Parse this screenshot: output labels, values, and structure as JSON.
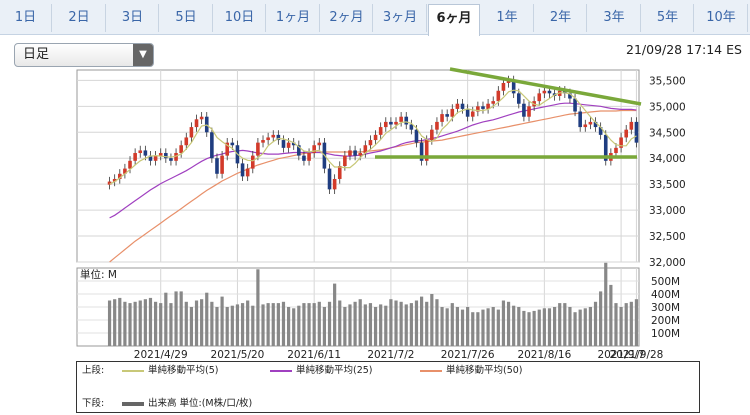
{
  "tabs": [
    "1日",
    "2日",
    "3日",
    "5日",
    "10日",
    "1ヶ月",
    "2ヶ月",
    "3ヶ月",
    "6ヶ月",
    "1年",
    "2年",
    "3年",
    "5年",
    "10年"
  ],
  "active_tab": "6ヶ月",
  "period_select": {
    "value": "日足"
  },
  "datetime": "21/09/28 17:14 ES",
  "colors": {
    "up": "#d23a2a",
    "down": "#1f3d80",
    "sma5": "#c8c878",
    "sma25": "#a040c0",
    "sma50": "#e8906a",
    "trend": "#7aa83a",
    "volume": "#888888"
  },
  "chart_data": [
    {
      "type": "candlestick",
      "x_labels": [
        "2021/4/29",
        "2021/5/20",
        "2021/6/11",
        "2021/7/2",
        "2021/7/26",
        "2021/8/16",
        "2021/9/7",
        "2021/9/28"
      ],
      "y_ticks": [
        "35,500",
        "35,000",
        "34,500",
        "34,000",
        "33,500",
        "33,000",
        "32,500",
        "32,000"
      ],
      "ylim": [
        32000,
        35700
      ],
      "close": [
        33550,
        33600,
        33700,
        33800,
        33950,
        34100,
        34150,
        34050,
        33950,
        34050,
        34100,
        34000,
        33950,
        34100,
        34250,
        34400,
        34600,
        34750,
        34800,
        34500,
        34000,
        33700,
        34050,
        34300,
        34250,
        33900,
        33650,
        33800,
        34050,
        34300,
        34350,
        34400,
        34450,
        34350,
        34200,
        34300,
        34250,
        34050,
        33950,
        34100,
        34250,
        34300,
        33800,
        33400,
        33600,
        33850,
        34050,
        34150,
        34050,
        34100,
        34250,
        34350,
        34450,
        34600,
        34700,
        34650,
        34700,
        34800,
        34650,
        34550,
        34300,
        33950,
        34350,
        34550,
        34700,
        34850,
        34800,
        34950,
        35050,
        34950,
        34800,
        34900,
        35000,
        34950,
        35050,
        35100,
        35300,
        35450,
        35500,
        35250,
        35050,
        34800,
        35000,
        35100,
        35250,
        35300,
        35250,
        35200,
        35300,
        35250,
        35150,
        34900,
        34600,
        34650,
        34700,
        34600,
        34450,
        33950,
        34100,
        34200,
        34400,
        34550,
        34700,
        34300
      ],
      "sma5": [
        33500,
        33550,
        33620,
        33700,
        33780,
        33870,
        33950,
        34000,
        34040,
        34050,
        34040,
        34030,
        34020,
        34040,
        34080,
        34180,
        34300,
        34470,
        34620,
        34640,
        34560,
        34400,
        34320,
        34250,
        34190,
        34080,
        34000,
        33960,
        33950,
        34010,
        34090,
        34240,
        34320,
        34380,
        34370,
        34340,
        34300,
        34220,
        34140,
        34120,
        34140,
        34150,
        34060,
        33930,
        33830,
        33830,
        33820,
        33820,
        33900,
        34010,
        34100,
        34170,
        34260,
        34360,
        34480,
        34550,
        34620,
        34690,
        34700,
        34670,
        34580,
        34430,
        34360,
        34320,
        34390,
        34560,
        34650,
        34770,
        34880,
        34920,
        34950,
        34930,
        34920,
        34920,
        34940,
        35000,
        35080,
        35170,
        35280,
        35310,
        35300,
        35200,
        35100,
        35040,
        35020,
        35090,
        35150,
        35220,
        35260,
        35260,
        35240,
        35160,
        35040,
        34920,
        34800,
        34690,
        34600,
        34470,
        34350,
        34260,
        34240,
        34240,
        34370,
        34430
      ],
      "sma25": [
        32850,
        32900,
        32970,
        33040,
        33110,
        33180,
        33250,
        33320,
        33390,
        33450,
        33510,
        33560,
        33610,
        33660,
        33710,
        33760,
        33820,
        33880,
        33940,
        33990,
        34030,
        34060,
        34080,
        34110,
        34130,
        34140,
        34150,
        34140,
        34120,
        34100,
        34090,
        34080,
        34080,
        34080,
        34090,
        34100,
        34110,
        34110,
        34110,
        34110,
        34110,
        34110,
        34100,
        34080,
        34060,
        34050,
        34040,
        34040,
        34050,
        34060,
        34080,
        34100,
        34120,
        34140,
        34170,
        34200,
        34230,
        34270,
        34300,
        34320,
        34340,
        34340,
        34360,
        34380,
        34400,
        34430,
        34460,
        34490,
        34520,
        34560,
        34600,
        34640,
        34670,
        34700,
        34720,
        34740,
        34770,
        34800,
        34830,
        34860,
        34890,
        34910,
        34930,
        34950,
        34970,
        34990,
        35010,
        35030,
        35050,
        35060,
        35060,
        35050,
        35040,
        35030,
        35020,
        35010,
        35000,
        34980,
        34960,
        34950,
        34940,
        34940,
        34940,
        34930
      ],
      "sma50": [
        32000,
        32080,
        32160,
        32240,
        32320,
        32400,
        32470,
        32540,
        32610,
        32680,
        32750,
        32820,
        32890,
        32960,
        33030,
        33100,
        33170,
        33240,
        33310,
        33380,
        33440,
        33500,
        33560,
        33610,
        33660,
        33710,
        33750,
        33790,
        33830,
        33870,
        33900,
        33930,
        33960,
        33990,
        34010,
        34030,
        34050,
        34070,
        34090,
        34100,
        34110,
        34120,
        34120,
        34120,
        34120,
        34120,
        34120,
        34120,
        34120,
        34120,
        34130,
        34140,
        34150,
        34160,
        34180,
        34200,
        34220,
        34240,
        34260,
        34280,
        34300,
        34310,
        34320,
        34330,
        34340,
        34350,
        34370,
        34390,
        34410,
        34430,
        34450,
        34470,
        34490,
        34510,
        34530,
        34550,
        34570,
        34590,
        34610,
        34630,
        34650,
        34670,
        34690,
        34710,
        34730,
        34750,
        34770,
        34790,
        34810,
        34830,
        34850,
        34860,
        34870,
        34880,
        34890,
        34900,
        34910,
        34910,
        34910,
        34910,
        34920,
        34920,
        34920,
        34920
      ],
      "volume_labels": [
        "500M",
        "400M",
        "300M",
        "200M",
        "100M"
      ],
      "volume_unit": "単位: M",
      "volume": [
        350,
        360,
        370,
        340,
        330,
        340,
        350,
        360,
        370,
        340,
        330,
        410,
        330,
        420,
        420,
        340,
        300,
        350,
        360,
        410,
        340,
        300,
        380,
        300,
        310,
        320,
        330,
        350,
        310,
        590,
        320,
        330,
        330,
        330,
        340,
        300,
        290,
        310,
        330,
        330,
        330,
        340,
        300,
        340,
        480,
        350,
        300,
        320,
        340,
        360,
        320,
        330,
        300,
        320,
        310,
        360,
        350,
        340,
        320,
        330,
        350,
        380,
        340,
        400,
        360,
        300,
        290,
        330,
        300,
        280,
        300,
        260,
        260,
        280,
        290,
        300,
        280,
        350,
        340,
        310,
        300,
        270,
        260,
        270,
        280,
        290,
        290,
        300,
        330,
        330,
        300,
        260,
        280,
        290,
        300,
        340,
        420,
        640,
        470,
        330,
        300,
        330,
        340,
        360
      ]
    }
  ],
  "legend": {
    "upper_label": "上段:",
    "lower_label": "下段:",
    "sma5": "単純移動平均(5)",
    "sma25": "単純移動平均(25)",
    "sma50": "単純移動平均(50)",
    "volume": "出来高 単位:(M株/口/枚)"
  }
}
